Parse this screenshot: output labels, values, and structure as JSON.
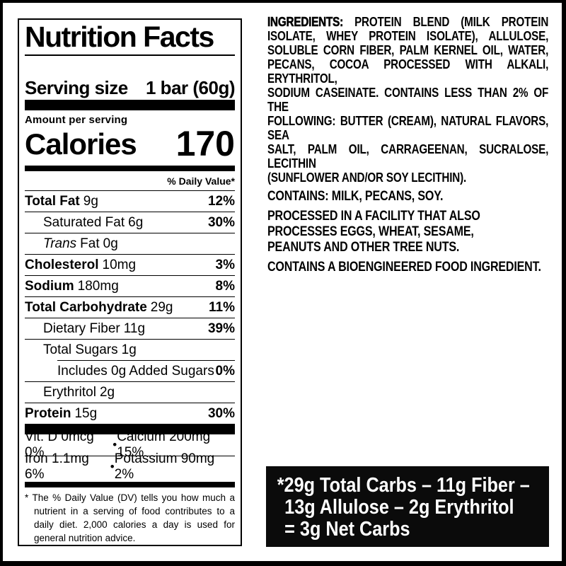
{
  "colors": {
    "text": "#000000",
    "background": "#ffffff",
    "callout_background": "#0b0b0b",
    "callout_text": "#ffffff"
  },
  "label": {
    "title": "Nutrition Facts",
    "serving_size_label": "Serving size",
    "serving_size_value": "1 bar (60g)",
    "amount_per_serving": "Amount per serving",
    "calories_label": "Calories",
    "calories_value": "170",
    "daily_value_header": "% Daily Value*",
    "rows": [
      {
        "name": "Total Fat",
        "amount": "9g",
        "dv": "12%"
      },
      {
        "name": "Saturated Fat",
        "amount": "6g",
        "dv": "30%"
      },
      {
        "name_italic": "Trans",
        "name": "Fat",
        "amount": "0g",
        "dv": ""
      },
      {
        "name": "Cholesterol",
        "amount": "10mg",
        "dv": "3%"
      },
      {
        "name": "Sodium",
        "amount": "180mg",
        "dv": "8%"
      },
      {
        "name": "Total Carbohydrate",
        "amount": "29g",
        "dv": "11%"
      },
      {
        "name": "Dietary Fiber",
        "amount": "11g",
        "dv": "39%"
      },
      {
        "name": "Total Sugars",
        "amount": "1g",
        "dv": ""
      },
      {
        "name": "Includes 0g Added Sugars",
        "amount": "",
        "dv": "0%"
      },
      {
        "name": "Erythritol",
        "amount": "2g",
        "dv": ""
      },
      {
        "name": "Protein",
        "amount": "15g",
        "dv": "30%"
      }
    ],
    "micronutrients": [
      {
        "left": "Vit. D 0mcg 0%",
        "bullet": "•",
        "right": "Calcium 200mg 15%"
      },
      {
        "left": "Iron 1.1mg 6%",
        "bullet": "•",
        "right": "Potassium 90mg 2%"
      }
    ],
    "footnote_marker": "*",
    "footnote_lines": [
      "The % Daily Value (DV) tells you how much a",
      "nutrient in a serving of food contributes to a",
      "daily diet. 2,000 calories a day is used for",
      "general nutrition advice."
    ]
  },
  "ingredients": {
    "heading": "INGREDIENTS:",
    "line1_rest": "PROTEIN BLEND (MILK PROTEIN",
    "lines": [
      "ISOLATE, WHEY PROTEIN ISOLATE), ALLULOSE,",
      "SOLUBLE CORN FIBER, PALM KERNEL OIL, WATER,",
      "PECANS, COCOA PROCESSED WITH ALKALI, ERYTHRITOL,",
      "SODIUM CASEINATE. CONTAINS LESS THAN 2% OF THE",
      "FOLLOWING: BUTTER (CREAM), NATURAL FLAVORS, SEA",
      "SALT, PALM OIL, CARRAGEENAN, SUCRALOSE, LECITHIN"
    ],
    "last_line": "(SUNFLOWER AND/OR SOY LECITHIN)."
  },
  "allergens": {
    "contains": "CONTAINS: MILK, PECANS, SOY.",
    "facility_lines": [
      "PROCESSED IN A FACILITY THAT ALSO",
      "PROCESSES EGGS, WHEAT, SESAME,",
      "PEANUTS AND OTHER TREE NUTS."
    ],
    "bioengineered": "CONTAINS A BIOENGINEERED FOOD INGREDIENT."
  },
  "net_carbs_box": {
    "lines": [
      "*29g Total Carbs – 11g Fiber –",
      "13g Allulose – 2g Erythritol",
      "= 3g Net Carbs"
    ]
  }
}
